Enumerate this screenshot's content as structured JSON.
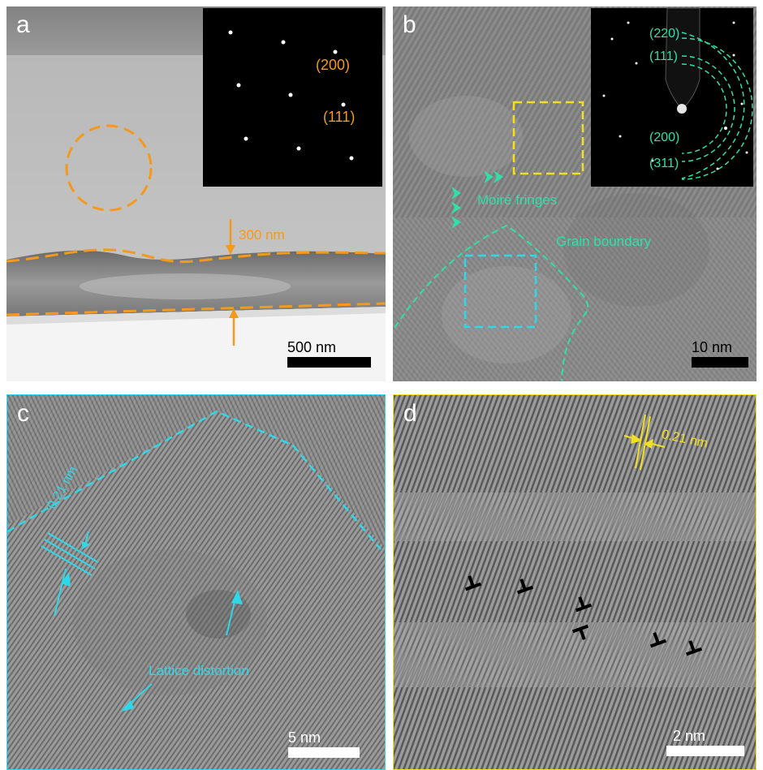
{
  "panels": {
    "a": {
      "label": "a",
      "diffraction_labels": [
        "(200)",
        "(111)"
      ],
      "thickness_label": "300 nm",
      "scale_bar": "500 nm",
      "accent": "#f39a1e"
    },
    "b": {
      "label": "b",
      "ring_labels": [
        "(220)",
        "(111)",
        "(200)",
        "(311)"
      ],
      "moire_label": "Moiré fringes",
      "grain_label": "Grain boundary",
      "scale_bar": "10 nm",
      "accent": "#2fe0a8",
      "box_colors": [
        "#f0e020",
        "#2fd8e8"
      ]
    },
    "c": {
      "label": "c",
      "spacing_label": "0.21 nm",
      "distortion_label": "Lattice distortion",
      "scale_bar": "5 nm",
      "accent": "#2fd8e8"
    },
    "d": {
      "label": "d",
      "spacing_label": "0.21 nm",
      "scale_bar": "2 nm",
      "accent": "#f0e020",
      "dislocation_icon": "edge-dislocation-icon"
    }
  }
}
